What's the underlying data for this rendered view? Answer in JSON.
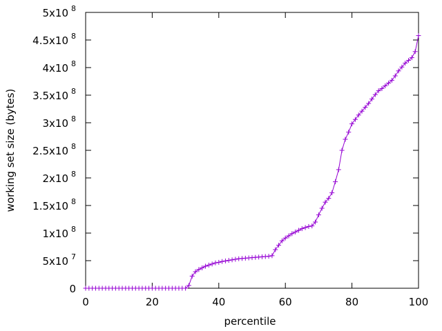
{
  "chart_data": {
    "type": "line",
    "title": "",
    "xlabel": "percentile",
    "ylabel": "working set size (bytes)",
    "xlim": [
      0,
      100
    ],
    "ylim": [
      0,
      500000000
    ],
    "grid": false,
    "legend": "none",
    "x_ticks": [
      {
        "value": 0,
        "label": "0"
      },
      {
        "value": 20,
        "label": "20"
      },
      {
        "value": 40,
        "label": "40"
      },
      {
        "value": 60,
        "label": "60"
      },
      {
        "value": 80,
        "label": "80"
      },
      {
        "value": 100,
        "label": "100"
      }
    ],
    "y_ticks": [
      {
        "value": 0,
        "mant": "0",
        "exp": ""
      },
      {
        "value": 50000000,
        "mant": "5x10",
        "exp": "7"
      },
      {
        "value": 100000000,
        "mant": "1x10",
        "exp": "8"
      },
      {
        "value": 150000000,
        "mant": "1.5x10",
        "exp": "8"
      },
      {
        "value": 200000000,
        "mant": "2x10",
        "exp": "8"
      },
      {
        "value": 250000000,
        "mant": "2.5x10",
        "exp": "8"
      },
      {
        "value": 300000000,
        "mant": "3x10",
        "exp": "8"
      },
      {
        "value": 350000000,
        "mant": "3.5x10",
        "exp": "8"
      },
      {
        "value": 400000000,
        "mant": "4x10",
        "exp": "8"
      },
      {
        "value": 450000000,
        "mant": "4.5x10",
        "exp": "8"
      },
      {
        "value": 500000000,
        "mant": "5x10",
        "exp": "8"
      }
    ],
    "colors": {
      "series": "#9400d3"
    },
    "series": [
      {
        "marker": "plus",
        "x": [
          0,
          1,
          2,
          3,
          4,
          5,
          6,
          7,
          8,
          9,
          10,
          11,
          12,
          13,
          14,
          15,
          16,
          17,
          18,
          19,
          20,
          21,
          22,
          23,
          24,
          25,
          26,
          27,
          28,
          29,
          30,
          31,
          32,
          33,
          34,
          35,
          36,
          37,
          38,
          39,
          40,
          41,
          42,
          43,
          44,
          45,
          46,
          47,
          48,
          49,
          50,
          51,
          52,
          53,
          54,
          55,
          56,
          57,
          58,
          59,
          60,
          61,
          62,
          63,
          64,
          65,
          66,
          67,
          68,
          69,
          70,
          71,
          72,
          73,
          74,
          75,
          76,
          77,
          78,
          79,
          80,
          81,
          82,
          83,
          84,
          85,
          86,
          87,
          88,
          89,
          90,
          91,
          92,
          93,
          94,
          95,
          96,
          97,
          98,
          99,
          100
        ],
        "y": [
          0,
          0,
          0,
          0,
          0,
          0,
          0,
          0,
          0,
          0,
          0,
          0,
          0,
          0,
          0,
          0,
          0,
          0,
          0,
          0,
          0,
          0,
          0,
          0,
          0,
          0,
          0,
          0,
          0,
          0,
          0,
          5000000,
          22000000,
          30000000,
          34000000,
          37000000,
          40000000,
          42000000,
          44000000,
          46000000,
          47000000,
          48500000,
          49500000,
          50500000,
          51500000,
          52500000,
          53500000,
          54000000,
          54500000,
          55000000,
          55500000,
          56000000,
          56500000,
          57000000,
          57500000,
          58000000,
          59000000,
          70000000,
          78000000,
          86000000,
          91000000,
          95000000,
          99000000,
          102000000,
          105000000,
          108000000,
          110000000,
          112000000,
          113000000,
          120000000,
          133000000,
          145000000,
          156000000,
          163000000,
          173000000,
          193000000,
          215000000,
          250000000,
          270000000,
          283000000,
          298000000,
          306000000,
          314000000,
          321000000,
          328000000,
          335000000,
          343000000,
          351000000,
          358000000,
          362000000,
          367000000,
          372000000,
          377000000,
          385000000,
          394000000,
          401000000,
          408000000,
          413000000,
          418000000,
          429000000,
          458000000
        ]
      }
    ]
  }
}
